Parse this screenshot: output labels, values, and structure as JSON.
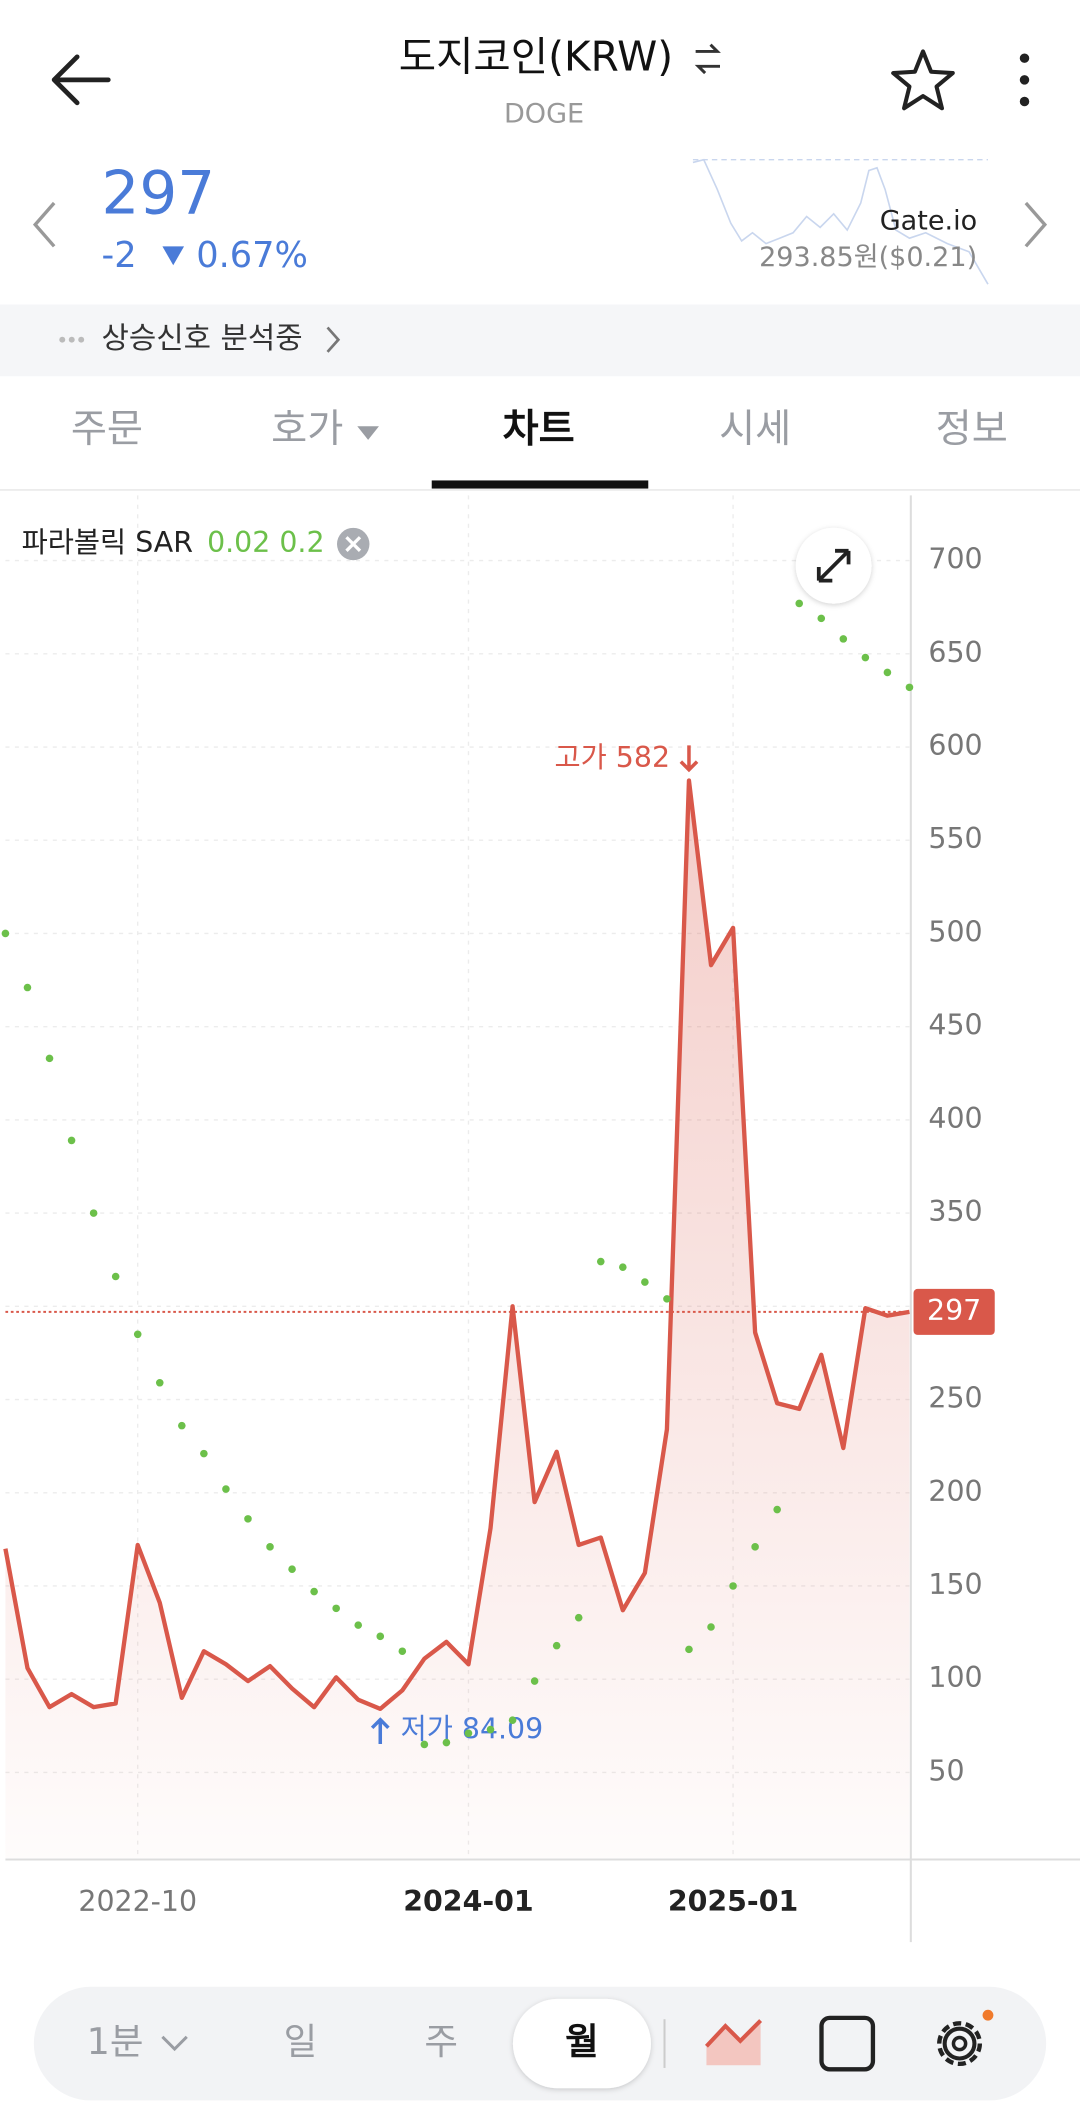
{
  "header": {
    "title": "도지코인(KRW)",
    "subtitle": "DOGE"
  },
  "ticker": {
    "price": "297",
    "change": "-2",
    "change_percent": "0.67%",
    "exchange": "Gate.io",
    "exchange_price": "293.85원($0.21)"
  },
  "signal": {
    "text": "상승신호 분석중"
  },
  "tabs": [
    "주문",
    "호가",
    "차트",
    "시세",
    "정보"
  ],
  "toolbar": [
    "1분",
    "일",
    "주",
    "월"
  ],
  "chart_data": {
    "type": "line",
    "categories": [
      null,
      null,
      null,
      null,
      null,
      null,
      "2022-10",
      null,
      null,
      null,
      null,
      null,
      null,
      null,
      null,
      null,
      null,
      null,
      null,
      null,
      null,
      "2024-01",
      null,
      null,
      null,
      null,
      null,
      null,
      null,
      null,
      null,
      null,
      null,
      "2025-01",
      null,
      null,
      null,
      null,
      null,
      null,
      null,
      null
    ],
    "series": [
      {
        "color": "#d9584a",
        "values": [
          170,
          106,
          85,
          92,
          85,
          87,
          172,
          141,
          90,
          115,
          108,
          99,
          107,
          95,
          85,
          101,
          89,
          84.09,
          94,
          111,
          120,
          108,
          181,
          300,
          195,
          222,
          172,
          176,
          137,
          157,
          234,
          582,
          483,
          503,
          286,
          248,
          245,
          274,
          224,
          299,
          295,
          297
        ]
      },
      {
        "name": "파라볼릭 SAR",
        "color": "#6cc04a",
        "marker": "dot",
        "values": [
          500,
          471,
          433,
          389,
          350,
          316,
          285,
          259,
          236,
          221,
          202,
          186,
          171,
          159,
          147,
          138,
          129,
          123,
          115,
          65,
          66,
          71,
          73,
          78,
          99,
          118,
          133,
          324,
          321,
          313,
          304,
          116,
          128,
          150,
          171,
          191,
          677,
          669,
          658,
          648,
          640,
          632
        ]
      }
    ],
    "sar_params": "0.02 0.2",
    "annotations": {
      "high": "고가 582",
      "low": "저가 84.09"
    },
    "ylim": [
      4,
      735
    ],
    "yticks": [
      50,
      100,
      150,
      200,
      250,
      300,
      350,
      400,
      450,
      500,
      550,
      600,
      650,
      700
    ],
    "grid": true
  }
}
